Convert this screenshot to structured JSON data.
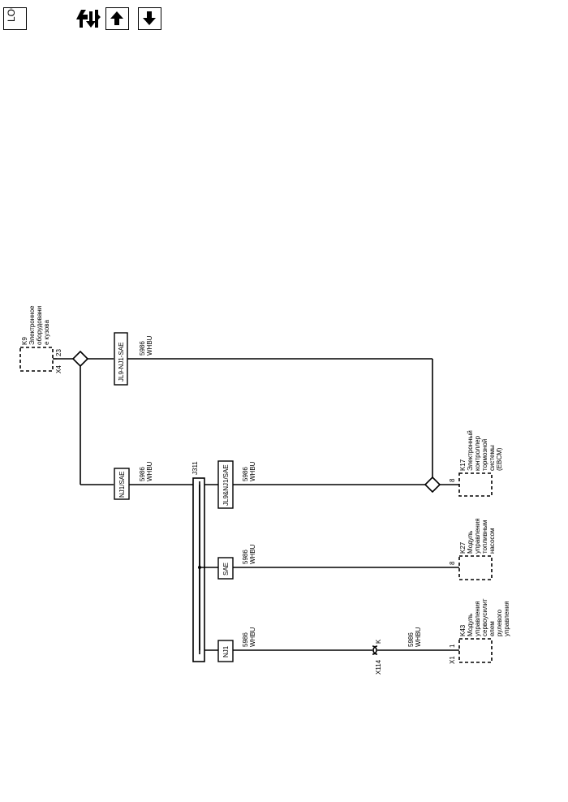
{
  "toolbar": {
    "loc_label": "LOC",
    "icons": [
      "location-icon",
      "tools-icon",
      "arrow-up-icon",
      "arrow-down-icon"
    ]
  },
  "diagram": {
    "circuit": "5986",
    "color": "WHBU",
    "modules": {
      "k9": {
        "id": "K9",
        "lines": [
          "Электронное",
          "оборудовани",
          "е кузова"
        ],
        "connector": "X4",
        "pin": "23"
      },
      "k17": {
        "id": "K17",
        "lines": [
          "Электронный",
          "контроллер",
          "тормозной",
          "системы",
          "(EBCM)"
        ],
        "pin": "8"
      },
      "k27": {
        "id": "K27",
        "lines": [
          "Модуль",
          "управления",
          "топливным",
          "насосом"
        ],
        "pin": "8"
      },
      "k43": {
        "id": "K43",
        "lines": [
          "Модуль",
          "управления",
          "сервоусилит",
          "елем",
          "рулевого",
          "управления"
        ],
        "connector": "X1",
        "pin": "1"
      }
    },
    "options": {
      "top": "JL9-NJ1-SAE",
      "left": "NJ1/SAE",
      "right": "JL9&NJ1/SAE",
      "sae": "SAE",
      "nj1": "NJ1"
    },
    "splice": "J311",
    "inline_connector": {
      "id": "X114",
      "pin": "K"
    }
  }
}
